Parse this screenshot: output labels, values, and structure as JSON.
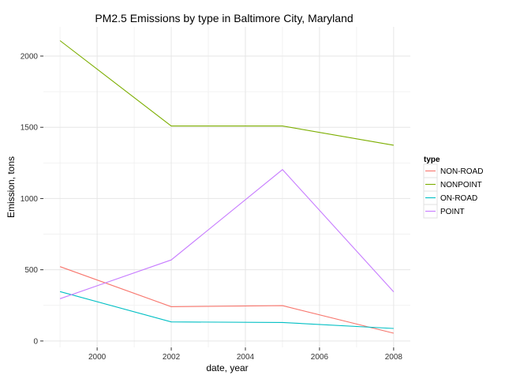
{
  "chart_data": {
    "type": "line",
    "title": "PM2.5 Emissions by type in Baltimore City, Maryland",
    "xlabel": "date, year",
    "ylabel": "Emission, tons",
    "x": [
      1999,
      2002,
      2005,
      2008
    ],
    "xlim": [
      1998.55,
      2008.45
    ],
    "ylim": [
      -45,
      2205
    ],
    "x_ticks": [
      2000,
      2002,
      2004,
      2006,
      2008
    ],
    "y_ticks": [
      0,
      500,
      1000,
      1500,
      2000
    ],
    "grid": true,
    "legend": {
      "title": "type",
      "position": "right"
    },
    "series": [
      {
        "name": "NON-ROAD",
        "color": "#f8766d",
        "values": [
          522,
          241,
          248,
          55
        ]
      },
      {
        "name": "NONPOINT",
        "color": "#7cae00",
        "values": [
          2108,
          1509,
          1509,
          1374
        ]
      },
      {
        "name": "ON-ROAD",
        "color": "#00bfc4",
        "values": [
          347,
          134,
          130,
          88
        ]
      },
      {
        "name": "POINT",
        "color": "#c77cff",
        "values": [
          297,
          569,
          1203,
          345
        ]
      }
    ]
  }
}
